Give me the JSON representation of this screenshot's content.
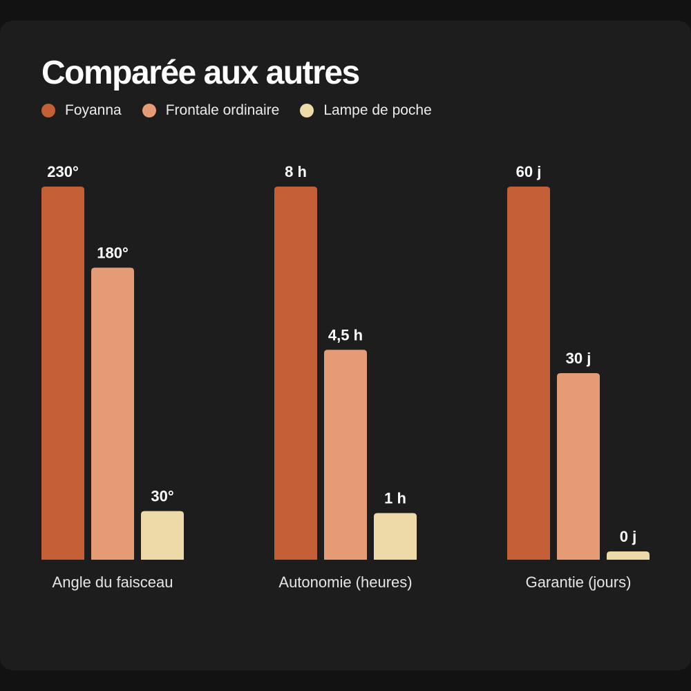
{
  "chart_data": {
    "type": "bar",
    "title": "Comparée aux autres",
    "legend_position": "top-left",
    "grid": false,
    "categories": [
      "Angle du faisceau",
      "Autonomie (heures)",
      "Garantie (jours)"
    ],
    "series": [
      {
        "name": "Foyanna",
        "color": "#c45f38",
        "values": [
          230,
          8,
          60
        ],
        "labels": [
          "230°",
          "8 h",
          "60 j"
        ]
      },
      {
        "name": "Frontale ordinaire",
        "color": "#e59b74",
        "values": [
          180,
          4.5,
          30
        ],
        "labels": [
          "180°",
          "4,5 h",
          "30 j"
        ]
      },
      {
        "name": "Lampe de poche",
        "color": "#eedaa8",
        "values": [
          30,
          1,
          0
        ],
        "labels": [
          "30°",
          "1 h",
          "0 j"
        ]
      }
    ]
  },
  "colors": {
    "background": "#121212",
    "card": "#1d1d1d",
    "text": "#ffffff"
  }
}
